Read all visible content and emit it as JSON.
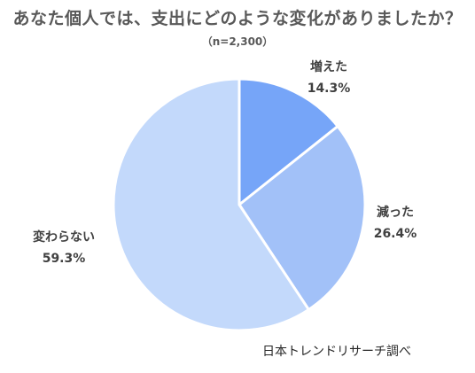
{
  "chart_data": {
    "type": "pie",
    "title": "あなた個人では、支出にどのような変化がありましたか？",
    "subtitle": "（n=2,300）",
    "slices": [
      {
        "label": "増えた",
        "value_label": "14.3%",
        "value": 14.3,
        "color": "#76a5f8"
      },
      {
        "label": "減った",
        "value_label": "26.4%",
        "value": 26.4,
        "color": "#a2c1f8"
      },
      {
        "label": "変わらない",
        "value_label": "59.3%",
        "value": 59.3,
        "color": "#c3d9fb"
      }
    ],
    "start_angle_deg": 0,
    "direction": "clockwise"
  },
  "source": "日本トレンドリサーチ調べ"
}
